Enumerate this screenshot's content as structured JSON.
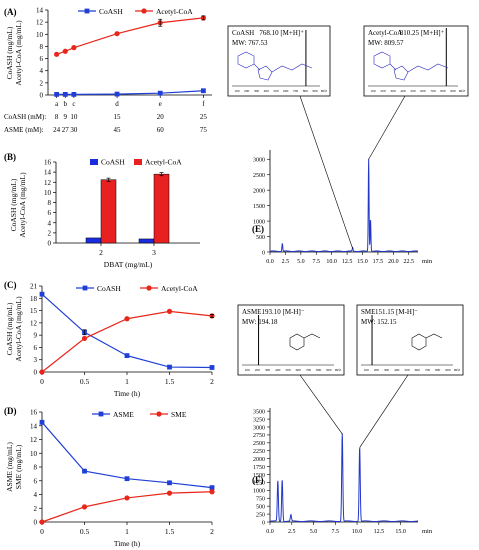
{
  "figure": {
    "panels": [
      "(A)",
      "(B)",
      "(C)",
      "(D)",
      "(E)",
      "(F)"
    ]
  },
  "colors": {
    "coash": "#1f3fd6",
    "acetyl": "#e8261a",
    "hplc": "#2438c8",
    "bar_blue": "#1a2ce0",
    "bar_red": "#e82020"
  },
  "chart_data": [
    {
      "panel": "(A)",
      "type": "line",
      "ylabel": "CoASH (mg/mL)\nAcetyl-CoA (mg/mL)",
      "ylim": [
        0,
        14
      ],
      "yticks": [
        0,
        2,
        4,
        6,
        8,
        10,
        12,
        14
      ],
      "categories": [
        "a",
        "b",
        "c",
        "d",
        "e",
        "f"
      ],
      "x_positions": [
        1,
        2,
        3,
        8,
        13,
        18
      ],
      "xlim": [
        0,
        19
      ],
      "table": [
        {
          "label": "CoASH (mM):",
          "values": [
            "8",
            "9",
            "10",
            "15",
            "20",
            "25"
          ]
        },
        {
          "label": "ASME (mM):",
          "values": [
            "24",
            "27",
            "30",
            "45",
            "60",
            "75"
          ]
        }
      ],
      "legend": [
        "CoASH",
        "Acetyl-CoA"
      ],
      "series": [
        {
          "name": "CoASH",
          "values": [
            0.1,
            0.1,
            0.1,
            0.15,
            0.3,
            0.7
          ]
        },
        {
          "name": "Acetyl-CoA",
          "values": [
            6.7,
            7.2,
            7.8,
            10.1,
            11.9,
            12.7
          ]
        }
      ]
    },
    {
      "panel": "(B)",
      "type": "bar",
      "ylabel": "CoASH (mg/mL)\nAcetyl-CoA (mg/mL)",
      "xlabel": "DBAT (mg/mL)",
      "categories": [
        "2",
        "3"
      ],
      "ylim": [
        0,
        16
      ],
      "yticks": [
        0,
        2,
        4,
        6,
        8,
        10,
        12,
        14,
        16
      ],
      "legend": [
        "CoASH",
        "Acetyl-CoA"
      ],
      "series": [
        {
          "name": "CoASH",
          "values": [
            1.0,
            0.8
          ]
        },
        {
          "name": "Acetyl-CoA",
          "values": [
            12.5,
            13.6
          ]
        }
      ]
    },
    {
      "panel": "(C)",
      "type": "line",
      "ylabel": "CoASH (mg/mL)\nAcetyl-CoA (mg/mL)",
      "xlabel": "Time (h)",
      "x": [
        0,
        0.5,
        1,
        1.5,
        2
      ],
      "xticks": [
        "0",
        "0.5",
        "1",
        "1.5",
        "2"
      ],
      "ylim": [
        0,
        21
      ],
      "yticks": [
        0,
        3,
        6,
        9,
        12,
        15,
        18,
        21
      ],
      "legend": [
        "CoASH",
        "Acetyl-CoA"
      ],
      "series": [
        {
          "name": "CoASH",
          "values": [
            19.0,
            9.7,
            4.0,
            1.2,
            1.1
          ]
        },
        {
          "name": "Acetyl-CoA",
          "values": [
            0.0,
            8.2,
            13.0,
            14.8,
            13.7
          ]
        }
      ]
    },
    {
      "panel": "(D)",
      "type": "line",
      "ylabel": "ASME (mg/mL)\nSME (mg/mL)",
      "xlabel": "Time (h)",
      "x": [
        0,
        0.5,
        1,
        1.5,
        2
      ],
      "xticks": [
        "0",
        "0.5",
        "1",
        "1.5",
        "2"
      ],
      "ylim": [
        0,
        16
      ],
      "yticks": [
        0,
        2,
        4,
        6,
        8,
        10,
        12,
        14,
        16
      ],
      "legend": [
        "ASME",
        "SME"
      ],
      "series": [
        {
          "name": "ASME",
          "values": [
            14.5,
            7.4,
            6.3,
            5.7,
            5.0
          ]
        },
        {
          "name": "SME",
          "values": [
            0.0,
            2.2,
            3.5,
            4.2,
            4.4
          ]
        }
      ]
    },
    {
      "panel": "(E)",
      "type": "line",
      "xlabel": "min",
      "xlim": [
        0,
        24
      ],
      "xticks": [
        "0.0",
        "2.5",
        "5.0",
        "7.5",
        "10.0",
        "12.5",
        "15.0",
        "17.5",
        "20.0",
        "22.5"
      ],
      "ylim": [
        0,
        3300
      ],
      "yticks": [
        0,
        500,
        1000,
        1500,
        2000,
        2500,
        3000
      ],
      "peaks": [
        {
          "rt": 2.0,
          "height": 260
        },
        {
          "rt": 13.4,
          "height": 110
        },
        {
          "rt": 16.0,
          "height": 3000
        },
        {
          "rt": 16.3,
          "height": 1050
        }
      ],
      "insets": [
        {
          "compound": "CoASH",
          "ion": "768.10 [M+H]⁺",
          "mw": "MW: 767.53",
          "xaxis": "m/z",
          "ticks": [
            "100",
            "200",
            "300",
            "400",
            "500",
            "600",
            "700",
            "800",
            "900"
          ]
        },
        {
          "compound": "Acetyl-CoA",
          "ion": "810.25 [M+H]⁺",
          "mw": "MW: 809.57",
          "xaxis": "m/z",
          "ticks": [
            "100",
            "200",
            "300",
            "400",
            "500",
            "600",
            "700",
            "800",
            "900"
          ]
        }
      ]
    },
    {
      "panel": "(F)",
      "type": "line",
      "xlabel": "min",
      "xlim": [
        0,
        17
      ],
      "xticks": [
        "0.0",
        "2.5",
        "5.0",
        "7.5",
        "10.0",
        "12.5",
        "15.0"
      ],
      "ylim": [
        0,
        3600
      ],
      "yticks": [
        0,
        250,
        500,
        750,
        1000,
        1250,
        1500,
        1750,
        2000,
        2250,
        2500,
        2750,
        3000,
        3250,
        3500
      ],
      "peaks": [
        {
          "rt": 0.9,
          "height": 1280
        },
        {
          "rt": 1.4,
          "height": 1320
        },
        {
          "rt": 2.4,
          "height": 200
        },
        {
          "rt": 8.3,
          "height": 2780
        },
        {
          "rt": 10.3,
          "height": 2350
        }
      ],
      "insets": [
        {
          "compound": "ASME",
          "ion": "193.10 [M-H]⁻",
          "mw": "MW: 194.18",
          "xaxis": "m/z",
          "ticks": [
            "100",
            "200",
            "300",
            "400",
            "500",
            "600",
            "700",
            "800",
            "900"
          ]
        },
        {
          "compound": "SME",
          "ion": "151.15 [M-H]⁻",
          "mw": "MW: 152.15",
          "xaxis": "m/z",
          "ticks": [
            "100",
            "200",
            "300",
            "400",
            "500",
            "600",
            "700",
            "800",
            "900"
          ]
        }
      ]
    }
  ]
}
